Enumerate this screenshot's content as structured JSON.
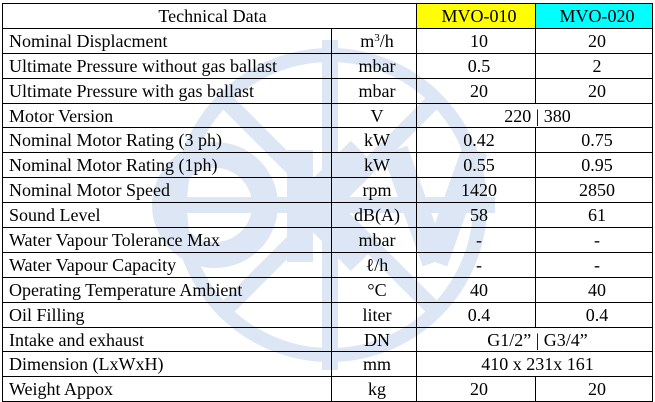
{
  "header": {
    "title": "Technical Data",
    "model_1": "MVO-010",
    "model_2": "MVO-020"
  },
  "colors": {
    "model_1_header": "#ffff00",
    "model_2_header": "#00ffff",
    "watermark": "#dde6f4"
  },
  "watermark": {
    "kind": "logo-watermark",
    "text": "OKV"
  },
  "rows": [
    {
      "param": "Nominal Displacment",
      "unit": "m",
      "unit_sup": "3",
      "unit_tail": "/h",
      "v1": "10",
      "v2": "20"
    },
    {
      "param": "Ultimate Pressure without gas ballast",
      "unit": "mbar",
      "v1": "0.5",
      "v2": "2"
    },
    {
      "param": "Ultimate Pressure with gas ballast",
      "unit": "mbar",
      "v1": "20",
      "v2": "20"
    },
    {
      "param": "Motor Version",
      "unit": "V",
      "span": "220 | 380"
    },
    {
      "param": "Nominal Motor Rating (3 ph)",
      "unit": "kW",
      "v1": "0.42",
      "v2": "0.75"
    },
    {
      "param": "Nominal Motor Rating (1ph)",
      "unit": "kW",
      "v1": "0.55",
      "v2": "0.95"
    },
    {
      "param": "Nominal Motor Speed",
      "unit": "rpm",
      "v1": "1420",
      "v2": "2850"
    },
    {
      "param": "Sound Level",
      "unit": "dB(A)",
      "v1": "58",
      "v2": "61"
    },
    {
      "param": "Water Vapour Tolerance Max",
      "unit": "mbar",
      "v1": "-",
      "v2": "-"
    },
    {
      "param": "Water Vapour Capacity",
      "unit": "ℓ/h",
      "v1": "-",
      "v2": "-"
    },
    {
      "param": "Operating Temperature Ambient",
      "unit": "°C",
      "v1": "40",
      "v2": "40"
    },
    {
      "param": "Oil Filling",
      "unit": "liter",
      "v1": "0.4",
      "v2": "0.4"
    },
    {
      "param": "Intake and exhaust",
      "unit": "DN",
      "span": "G1/2” | G3/4”"
    },
    {
      "param": "Dimension (LxWxH)",
      "unit": "mm",
      "span": "410 x 231x 161"
    },
    {
      "param": "Weight Appox",
      "unit": "kg",
      "v1": "20",
      "v2": "20"
    }
  ]
}
